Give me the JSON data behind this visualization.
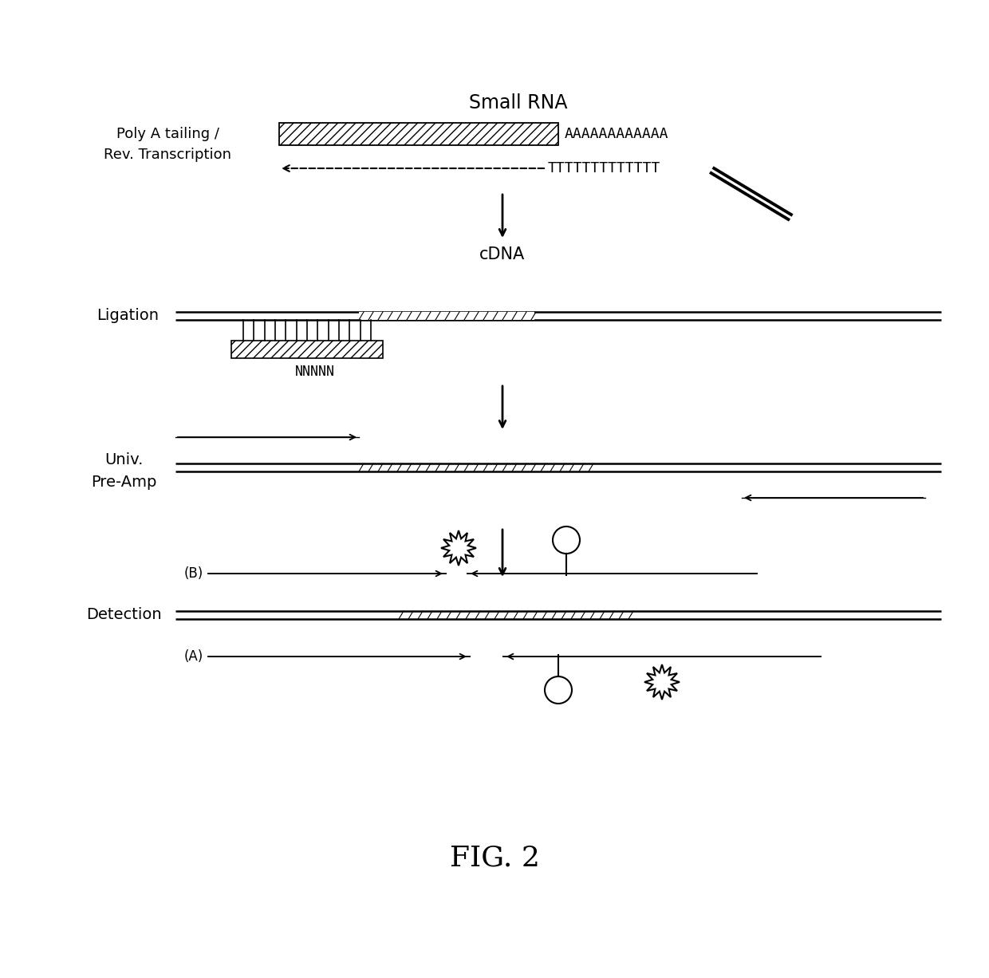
{
  "bg_color": "#ffffff",
  "text_color": "#000000",
  "fig_title": "FIG. 2",
  "small_rna_label": "Small RNA",
  "poly_a_label": "Poly A tailing /\nRev. Transcription",
  "cdna_label": "cDNA",
  "ligation_label": "Ligation",
  "preamp_label": "Univ.\nPre-Amp",
  "detection_label": "Detection",
  "aaaa_text": "AAAAAAAAAAAA",
  "tttt_text": "TTTTTTTTTTTTT",
  "nnnnn_text": "NNNNN"
}
